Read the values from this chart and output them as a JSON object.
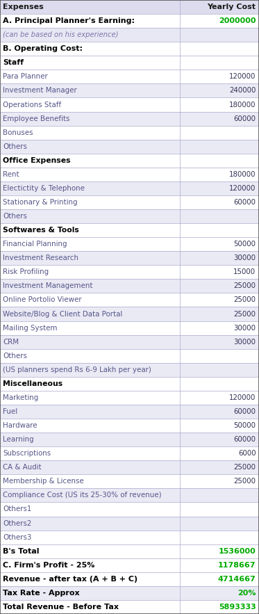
{
  "rows": [
    {
      "label": "Expenses",
      "value": "Yearly Cost",
      "style": "header"
    },
    {
      "label": "A. Principal Planner's Earning:",
      "value": "2000000",
      "style": "section_a"
    },
    {
      "label": "(can be based on his experience)",
      "value": "",
      "style": "italic_note"
    },
    {
      "label": "B. Operating Cost:",
      "value": "",
      "style": "section_b"
    },
    {
      "label": "Staff",
      "value": "",
      "style": "subsection"
    },
    {
      "label": "Para Planner",
      "value": "120000",
      "style": "item_white"
    },
    {
      "label": "Investment Manager",
      "value": "240000",
      "style": "item_purple"
    },
    {
      "label": "Operations Staff",
      "value": "180000",
      "style": "item_white"
    },
    {
      "label": "Employee Benefits",
      "value": "60000",
      "style": "item_purple"
    },
    {
      "label": "Bonuses",
      "value": "",
      "style": "item_white"
    },
    {
      "label": "Others",
      "value": "",
      "style": "item_purple"
    },
    {
      "label": "Office Expenses",
      "value": "",
      "style": "subsection"
    },
    {
      "label": "Rent",
      "value": "180000",
      "style": "item_white"
    },
    {
      "label": "Electictity & Telephone",
      "value": "120000",
      "style": "item_purple"
    },
    {
      "label": "Stationary & Printing",
      "value": "60000",
      "style": "item_white"
    },
    {
      "label": "Others",
      "value": "",
      "style": "item_purple"
    },
    {
      "label": "Softwares & Tools",
      "value": "",
      "style": "subsection"
    },
    {
      "label": "Financial Planning",
      "value": "50000",
      "style": "item_white"
    },
    {
      "label": "Investment Research",
      "value": "30000",
      "style": "item_purple"
    },
    {
      "label": "Risk Profiling",
      "value": "15000",
      "style": "item_white"
    },
    {
      "label": "Investment Management",
      "value": "25000",
      "style": "item_purple"
    },
    {
      "label": "Online Portolio Viewer",
      "value": "25000",
      "style": "item_white"
    },
    {
      "label": "Website/Blog & Client Data Portal",
      "value": "25000",
      "style": "item_purple"
    },
    {
      "label": "Mailing System",
      "value": "30000",
      "style": "item_white"
    },
    {
      "label": "CRM",
      "value": "30000",
      "style": "item_purple"
    },
    {
      "label": "Others",
      "value": "",
      "style": "item_white"
    },
    {
      "label": "(US planners spend Rs 6-9 Lakh per year)",
      "value": "",
      "style": "item_purple"
    },
    {
      "label": "Miscellaneous",
      "value": "",
      "style": "subsection"
    },
    {
      "label": "Marketing",
      "value": "120000",
      "style": "item_white"
    },
    {
      "label": "Fuel",
      "value": "60000",
      "style": "item_purple"
    },
    {
      "label": "Hardware",
      "value": "50000",
      "style": "item_white"
    },
    {
      "label": "Learning",
      "value": "60000",
      "style": "item_purple"
    },
    {
      "label": "Subscriptions",
      "value": "6000",
      "style": "item_white"
    },
    {
      "label": "CA & Audit",
      "value": "25000",
      "style": "item_purple"
    },
    {
      "label": "Membership & License",
      "value": "25000",
      "style": "item_white"
    },
    {
      "label": "Compliance Cost (US its 25-30% of revenue)",
      "value": "",
      "style": "item_purple"
    },
    {
      "label": "Others1",
      "value": "",
      "style": "item_white"
    },
    {
      "label": "Others2",
      "value": "",
      "style": "item_purple"
    },
    {
      "label": "Others3",
      "value": "",
      "style": "item_white"
    },
    {
      "label": "B's Total",
      "value": "1536000",
      "style": "total_b"
    },
    {
      "label": "C. Firm's Profit - 25%",
      "value": "1178667",
      "style": "total_c"
    },
    {
      "label": "Revenue - after tax (A + B + C)",
      "value": "4714667",
      "style": "total_rev"
    },
    {
      "label": "Tax Rate - Approx",
      "value": "20%",
      "style": "total_tax"
    },
    {
      "label": "Total Revenue - Before Tax",
      "value": "5893333",
      "style": "total_final"
    }
  ],
  "style_map": {
    "header": {
      "bg": "#dcdcee",
      "text_color": "#1a1a1a",
      "value_color": "#1a1a1a",
      "fontweight": "bold",
      "fontsize": 8.0,
      "italic": false
    },
    "section_a": {
      "bg": "#ffffff",
      "text_color": "#000000",
      "value_color": "#00aa00",
      "fontweight": "bold",
      "fontsize": 8.0,
      "italic": false
    },
    "italic_note": {
      "bg": "#e8e8f5",
      "text_color": "#7777aa",
      "value_color": "#7777aa",
      "fontweight": "normal",
      "fontsize": 7.2,
      "italic": true
    },
    "section_b": {
      "bg": "#ffffff",
      "text_color": "#000000",
      "value_color": "#000000",
      "fontweight": "bold",
      "fontsize": 8.0,
      "italic": false
    },
    "subsection": {
      "bg": "#ffffff",
      "text_color": "#000000",
      "value_color": "#000000",
      "fontweight": "bold",
      "fontsize": 7.8,
      "italic": false
    },
    "item_white": {
      "bg": "#ffffff",
      "text_color": "#555588",
      "value_color": "#333355",
      "fontweight": "normal",
      "fontsize": 7.4,
      "italic": false
    },
    "item_purple": {
      "bg": "#eaeaf5",
      "text_color": "#555588",
      "value_color": "#333355",
      "fontweight": "normal",
      "fontsize": 7.4,
      "italic": false
    },
    "total_b": {
      "bg": "#ffffff",
      "text_color": "#000000",
      "value_color": "#00aa00",
      "fontweight": "bold",
      "fontsize": 8.0,
      "italic": false
    },
    "total_c": {
      "bg": "#ffffff",
      "text_color": "#000000",
      "value_color": "#00aa00",
      "fontweight": "bold",
      "fontsize": 8.0,
      "italic": false
    },
    "total_rev": {
      "bg": "#ffffff",
      "text_color": "#000000",
      "value_color": "#00aa00",
      "fontweight": "bold",
      "fontsize": 8.0,
      "italic": false
    },
    "total_tax": {
      "bg": "#eaeaf5",
      "text_color": "#000000",
      "value_color": "#00aa00",
      "fontweight": "bold",
      "fontsize": 8.0,
      "italic": false
    },
    "total_final": {
      "bg": "#ffffff",
      "text_color": "#000000",
      "value_color": "#00aa00",
      "fontweight": "bold",
      "fontsize": 8.0,
      "italic": false
    }
  },
  "fig_width": 3.73,
  "fig_height": 8.83,
  "dpi": 100,
  "col_split": 0.695,
  "border_color": "#555555",
  "line_color": "#aaaacc"
}
